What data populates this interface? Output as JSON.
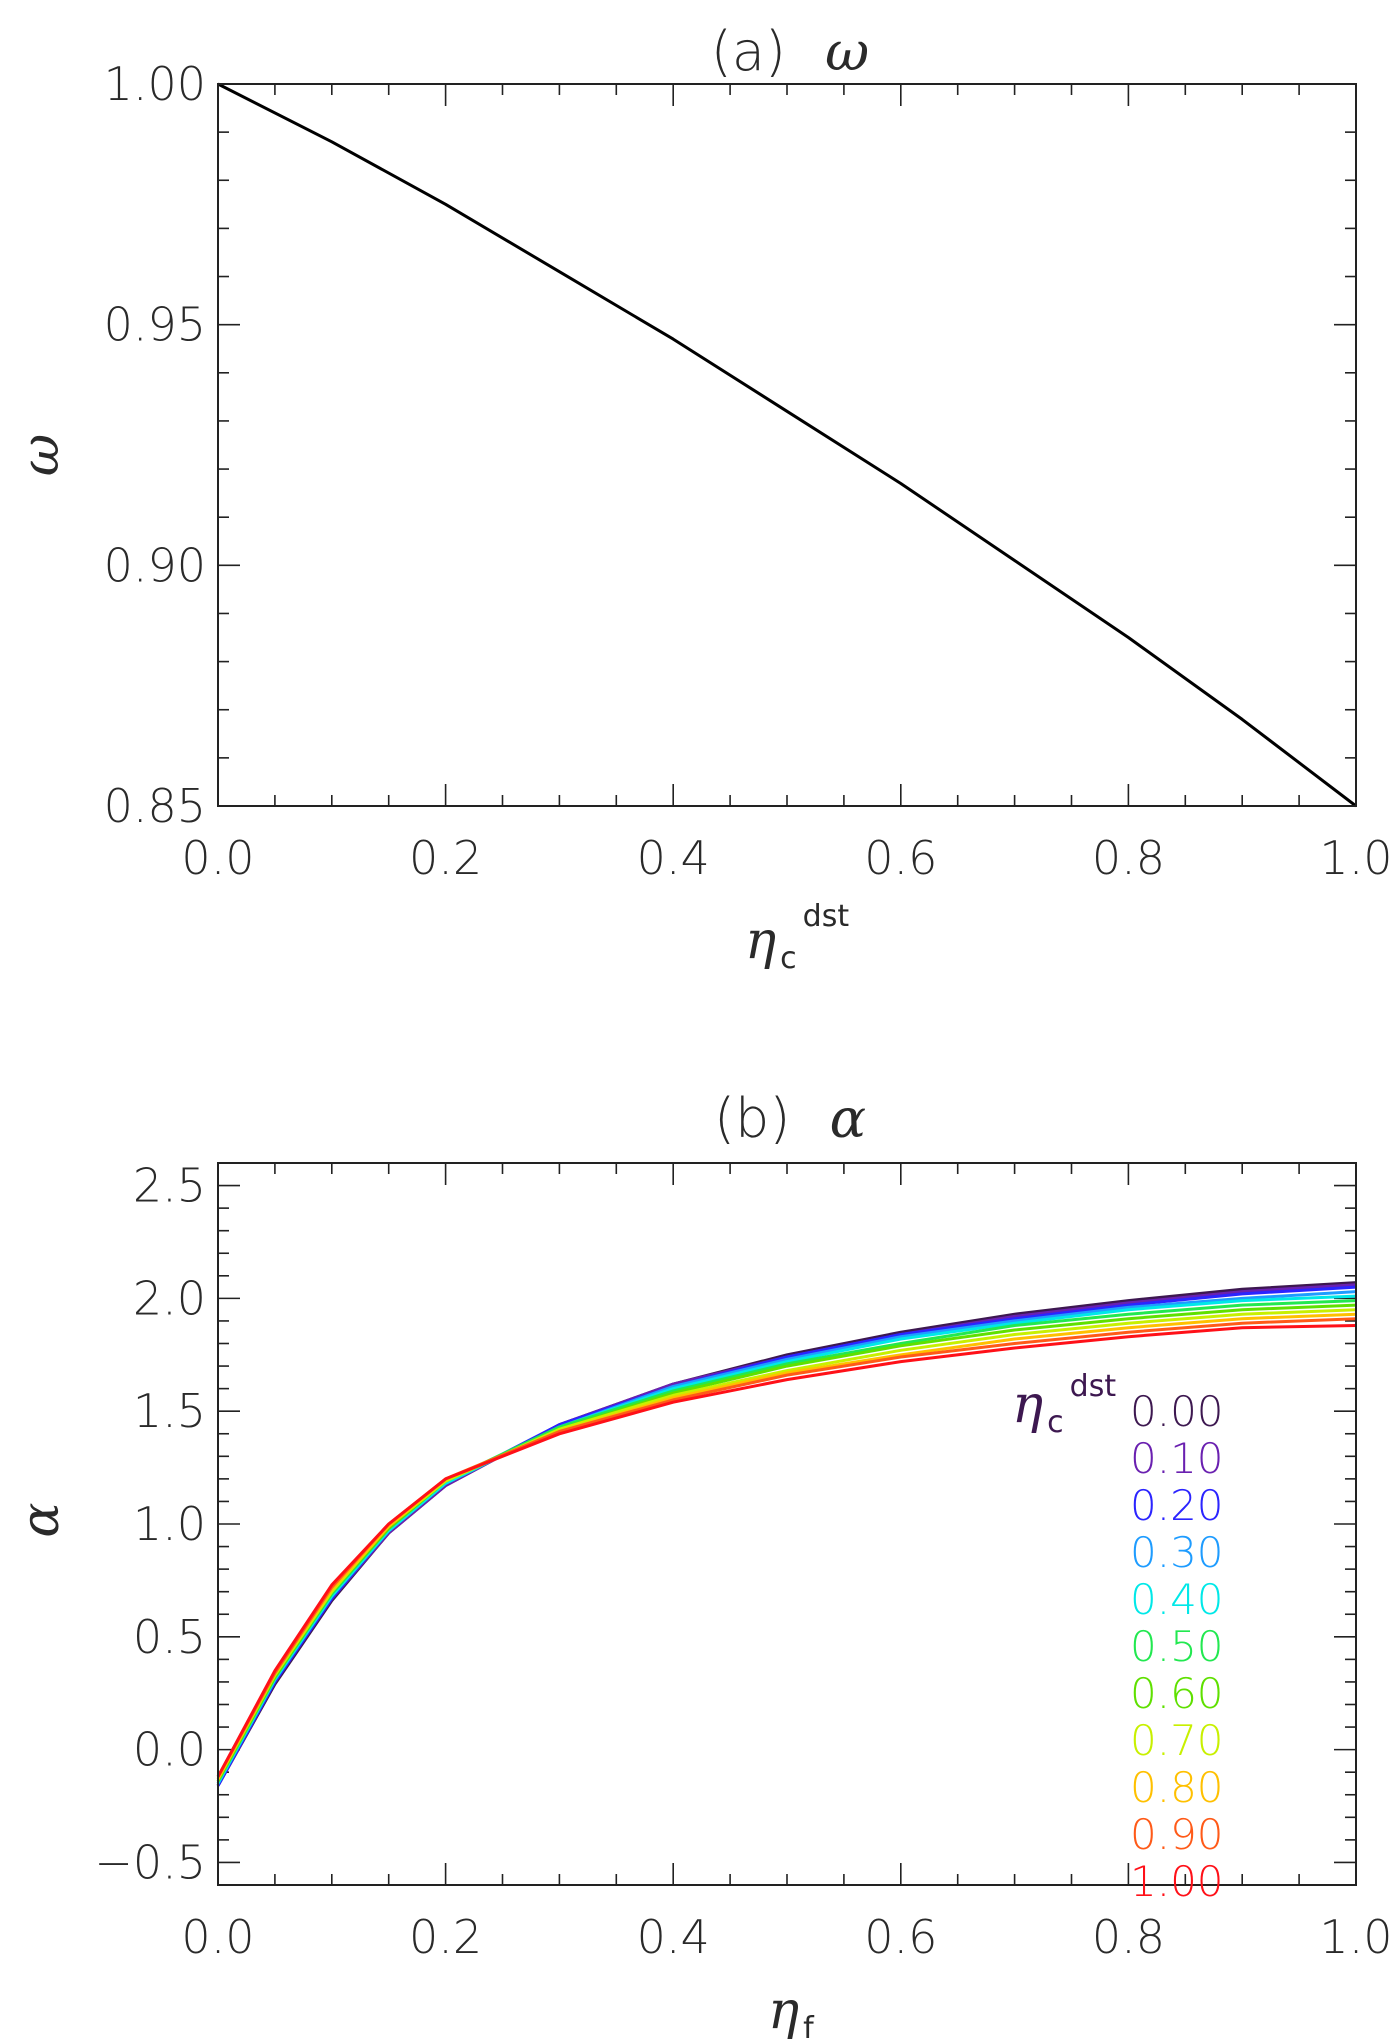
{
  "chart_data": [
    {
      "type": "line",
      "panel_label": "(a)",
      "title_symbol": "ω",
      "xlabel": "η",
      "xlabel_sub": "c",
      "xlabel_sup": "dst",
      "ylabel": "ω",
      "xlim": [
        0.0,
        1.0
      ],
      "ylim": [
        0.85,
        1.0
      ],
      "x_ticks": [
        "0.0",
        "0.2",
        "0.4",
        "0.6",
        "0.8",
        "1.0"
      ],
      "y_ticks": [
        "0.85",
        "0.90",
        "0.95",
        "1.00"
      ],
      "series": [
        {
          "color": "#000000",
          "x": [
            0.0,
            0.1,
            0.2,
            0.3,
            0.4,
            0.5,
            0.6,
            0.7,
            0.8,
            0.9,
            1.0
          ],
          "y": [
            1.0,
            0.988,
            0.975,
            0.961,
            0.947,
            0.932,
            0.917,
            0.901,
            0.885,
            0.868,
            0.85
          ]
        }
      ]
    },
    {
      "type": "line",
      "panel_label": "(b)",
      "title_symbol": "α",
      "xlabel": "η",
      "xlabel_sub": "f",
      "ylabel": "α",
      "xlim": [
        0.0,
        1.0
      ],
      "ylim": [
        -0.6,
        2.6
      ],
      "x_ticks": [
        "0.0",
        "0.2",
        "0.4",
        "0.6",
        "0.8",
        "1.0"
      ],
      "y_ticks": [
        "−0.5",
        "0.0",
        "0.5",
        "1.0",
        "1.5",
        "2.0",
        "2.5"
      ],
      "y_tick_values": [
        -0.5,
        0.0,
        0.5,
        1.0,
        1.5,
        2.0,
        2.5
      ],
      "legend_title": "η",
      "legend_title_sub": "c",
      "legend_title_sup": "dst",
      "legend_position": "right",
      "x": [
        0.0,
        0.05,
        0.1,
        0.15,
        0.2,
        0.3,
        0.4,
        0.5,
        0.6,
        0.7,
        0.8,
        0.9,
        1.0
      ],
      "series": [
        {
          "name": "0.00",
          "color": "#3d1850",
          "values": [
            -0.16,
            0.29,
            0.66,
            0.96,
            1.17,
            1.44,
            1.62,
            1.75,
            1.85,
            1.93,
            1.99,
            2.04,
            2.07
          ]
        },
        {
          "name": "0.10",
          "color": "#6a20b0",
          "values": [
            -0.16,
            0.3,
            0.67,
            0.96,
            1.17,
            1.44,
            1.62,
            1.74,
            1.84,
            1.92,
            1.98,
            2.03,
            2.06
          ]
        },
        {
          "name": "0.20",
          "color": "#2b24ff",
          "values": [
            -0.16,
            0.3,
            0.67,
            0.97,
            1.18,
            1.44,
            1.61,
            1.74,
            1.84,
            1.91,
            1.97,
            2.02,
            2.05
          ]
        },
        {
          "name": "0.30",
          "color": "#1e9cff",
          "values": [
            -0.15,
            0.31,
            0.68,
            0.97,
            1.18,
            1.43,
            1.61,
            1.73,
            1.83,
            1.9,
            1.96,
            2.0,
            2.03
          ]
        },
        {
          "name": "0.40",
          "color": "#00e8e8",
          "values": [
            -0.15,
            0.31,
            0.68,
            0.97,
            1.18,
            1.43,
            1.6,
            1.72,
            1.82,
            1.89,
            1.95,
            1.99,
            2.01
          ]
        },
        {
          "name": "0.50",
          "color": "#22e850",
          "values": [
            -0.14,
            0.32,
            0.69,
            0.98,
            1.19,
            1.43,
            1.59,
            1.71,
            1.8,
            1.88,
            1.93,
            1.97,
            1.99
          ]
        },
        {
          "name": "0.60",
          "color": "#5fe000",
          "values": [
            -0.14,
            0.32,
            0.7,
            0.98,
            1.19,
            1.42,
            1.58,
            1.7,
            1.79,
            1.86,
            1.91,
            1.95,
            1.97
          ]
        },
        {
          "name": "0.70",
          "color": "#c8f000",
          "values": [
            -0.13,
            0.33,
            0.7,
            0.99,
            1.19,
            1.42,
            1.57,
            1.68,
            1.77,
            1.84,
            1.89,
            1.93,
            1.95
          ]
        },
        {
          "name": "0.80",
          "color": "#ffc000",
          "values": [
            -0.13,
            0.34,
            0.71,
            0.99,
            1.2,
            1.41,
            1.56,
            1.67,
            1.75,
            1.82,
            1.87,
            1.91,
            1.93
          ]
        },
        {
          "name": "0.90",
          "color": "#ff5a18",
          "values": [
            -0.12,
            0.34,
            0.72,
            1.0,
            1.2,
            1.41,
            1.55,
            1.66,
            1.74,
            1.8,
            1.85,
            1.89,
            1.91
          ]
        },
        {
          "name": "1.00",
          "color": "#ff1018",
          "values": [
            -0.12,
            0.35,
            0.73,
            1.0,
            1.2,
            1.4,
            1.54,
            1.64,
            1.72,
            1.78,
            1.83,
            1.87,
            1.88
          ]
        }
      ]
    }
  ]
}
